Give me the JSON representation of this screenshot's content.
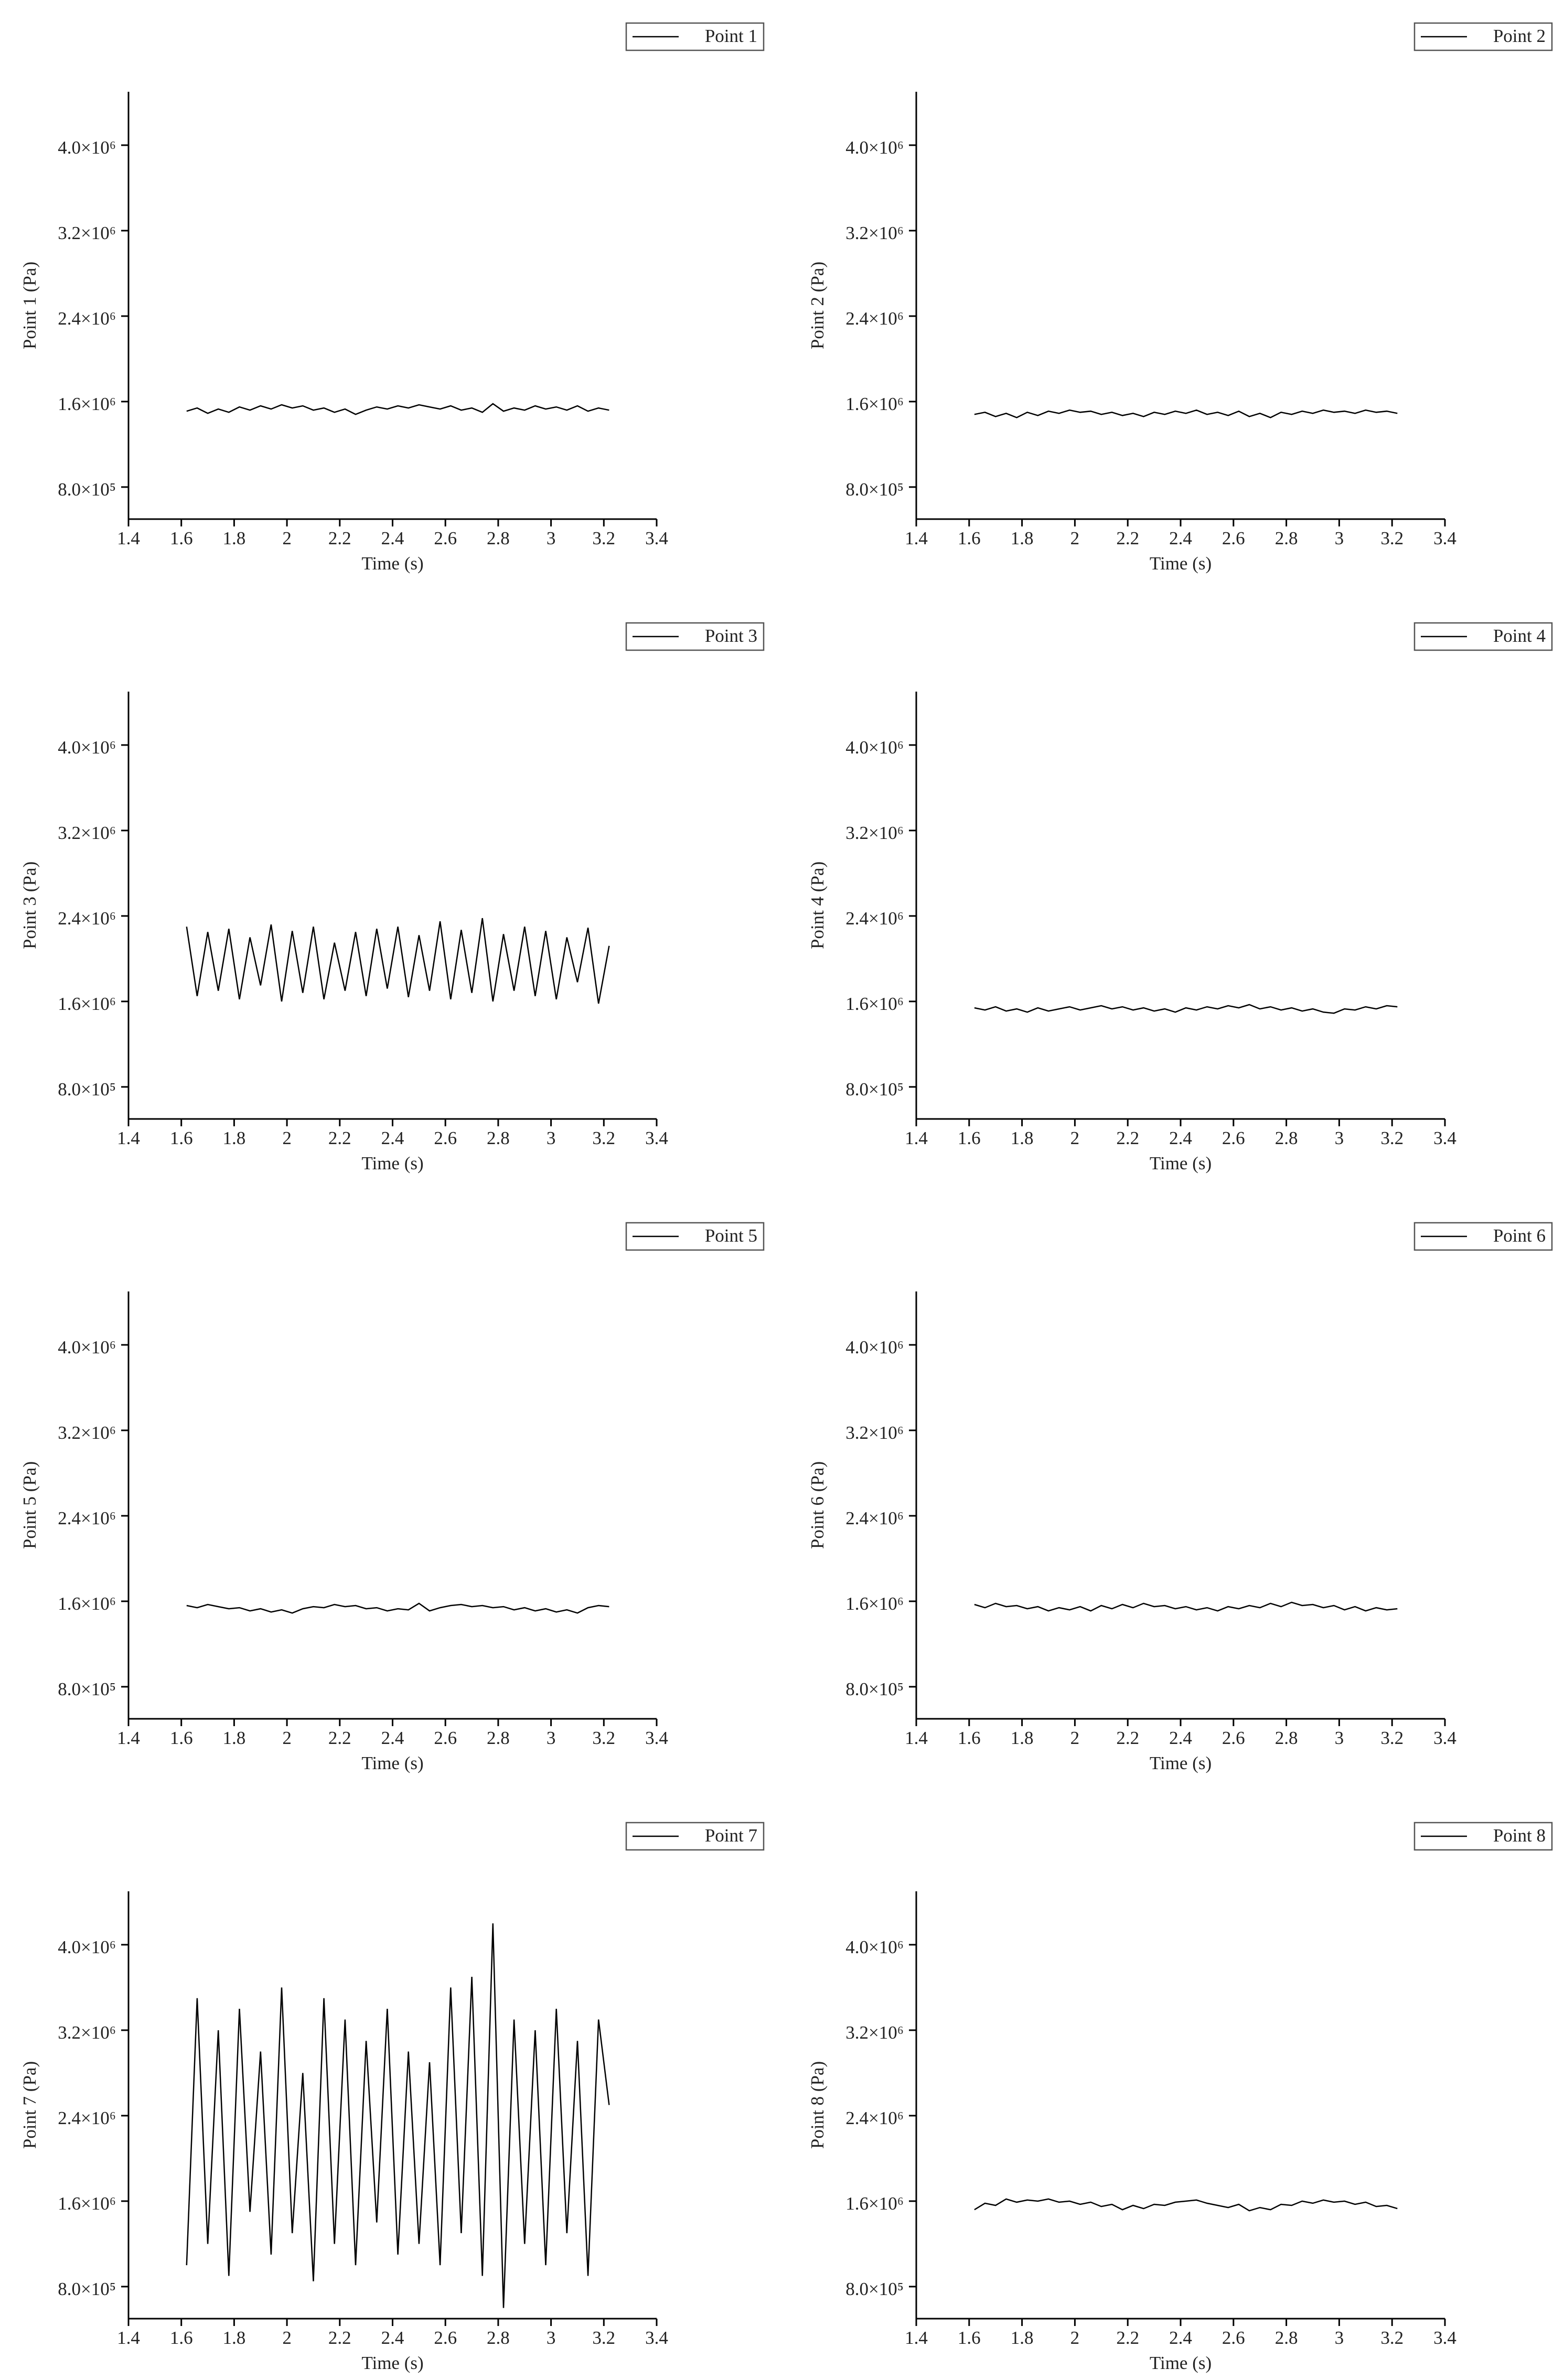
{
  "chart_data": [
    {
      "type": "line",
      "y_label": "Point 1 (Pa)",
      "x_label": "Time (s)",
      "x": [
        1.62,
        1.66,
        1.7,
        1.74,
        1.78,
        1.82,
        1.86,
        1.9,
        1.94,
        1.98,
        2.02,
        2.06,
        2.1,
        2.14,
        2.18,
        2.22,
        2.26,
        2.3,
        2.34,
        2.38,
        2.42,
        2.46,
        2.5,
        2.54,
        2.58,
        2.62,
        2.66,
        2.7,
        2.74,
        2.78,
        2.82,
        2.86,
        2.9,
        2.94,
        2.98,
        3.02,
        3.06,
        3.1,
        3.14,
        3.18,
        3.22
      ],
      "series": [
        {
          "name": "Point 1",
          "color": "#000000",
          "values": [
            1510000,
            1540000,
            1490000,
            1530000,
            1500000,
            1550000,
            1520000,
            1560000,
            1530000,
            1570000,
            1540000,
            1560000,
            1520000,
            1540000,
            1500000,
            1530000,
            1480000,
            1520000,
            1550000,
            1530000,
            1560000,
            1540000,
            1570000,
            1550000,
            1530000,
            1560000,
            1520000,
            1540000,
            1500000,
            1580000,
            1510000,
            1540000,
            1520000,
            1560000,
            1530000,
            1550000,
            1520000,
            1560000,
            1510000,
            1540000,
            1520000
          ]
        }
      ],
      "xlim": [
        1.4,
        3.4
      ],
      "xticks": [
        1.4,
        1.6,
        1.8,
        2.0,
        2.2,
        2.4,
        2.6,
        2.8,
        3.0,
        3.2,
        3.4
      ],
      "ylim": [
        500000,
        4500000
      ],
      "yticks": [
        {
          "value": 800000,
          "label": "8.0×10⁵"
        },
        {
          "value": 1600000,
          "label": "1.6×10⁶"
        },
        {
          "value": 2400000,
          "label": "2.4×10⁶"
        },
        {
          "value": 3200000,
          "label": "3.2×10⁶"
        },
        {
          "value": 4000000,
          "label": "4.0×10⁶"
        }
      ]
    },
    {
      "type": "line",
      "y_label": "Point 2 (Pa)",
      "x_label": "Time (s)",
      "x": [
        1.62,
        1.66,
        1.7,
        1.74,
        1.78,
        1.82,
        1.86,
        1.9,
        1.94,
        1.98,
        2.02,
        2.06,
        2.1,
        2.14,
        2.18,
        2.22,
        2.26,
        2.3,
        2.34,
        2.38,
        2.42,
        2.46,
        2.5,
        2.54,
        2.58,
        2.62,
        2.66,
        2.7,
        2.74,
        2.78,
        2.82,
        2.86,
        2.9,
        2.94,
        2.98,
        3.02,
        3.06,
        3.1,
        3.14,
        3.18,
        3.22
      ],
      "series": [
        {
          "name": "Point 2",
          "color": "#000000",
          "values": [
            1480000,
            1500000,
            1460000,
            1490000,
            1450000,
            1500000,
            1470000,
            1510000,
            1490000,
            1520000,
            1500000,
            1510000,
            1480000,
            1500000,
            1470000,
            1490000,
            1460000,
            1500000,
            1480000,
            1510000,
            1490000,
            1520000,
            1480000,
            1500000,
            1470000,
            1510000,
            1460000,
            1490000,
            1450000,
            1500000,
            1480000,
            1510000,
            1490000,
            1520000,
            1500000,
            1510000,
            1490000,
            1520000,
            1500000,
            1510000,
            1490000
          ]
        }
      ],
      "xlim": [
        1.4,
        3.4
      ],
      "xticks": [
        1.4,
        1.6,
        1.8,
        2.0,
        2.2,
        2.4,
        2.6,
        2.8,
        3.0,
        3.2,
        3.4
      ],
      "ylim": [
        500000,
        4500000
      ],
      "yticks": [
        {
          "value": 800000,
          "label": "8.0×10⁵"
        },
        {
          "value": 1600000,
          "label": "1.6×10⁶"
        },
        {
          "value": 2400000,
          "label": "2.4×10⁶"
        },
        {
          "value": 3200000,
          "label": "3.2×10⁶"
        },
        {
          "value": 4000000,
          "label": "4.0×10⁶"
        }
      ]
    },
    {
      "type": "line",
      "y_label": "Point 3 (Pa)",
      "x_label": "Time (s)",
      "x": [
        1.62,
        1.66,
        1.7,
        1.74,
        1.78,
        1.82,
        1.86,
        1.9,
        1.94,
        1.98,
        2.02,
        2.06,
        2.1,
        2.14,
        2.18,
        2.22,
        2.26,
        2.3,
        2.34,
        2.38,
        2.42,
        2.46,
        2.5,
        2.54,
        2.58,
        2.62,
        2.66,
        2.7,
        2.74,
        2.78,
        2.82,
        2.86,
        2.9,
        2.94,
        2.98,
        3.02,
        3.06,
        3.1,
        3.14,
        3.18,
        3.22
      ],
      "series": [
        {
          "name": "Point 3",
          "color": "#000000",
          "values": [
            2300000,
            1650000,
            2250000,
            1700000,
            2280000,
            1620000,
            2200000,
            1750000,
            2320000,
            1600000,
            2260000,
            1680000,
            2300000,
            1620000,
            2150000,
            1700000,
            2250000,
            1650000,
            2280000,
            1720000,
            2300000,
            1640000,
            2220000,
            1700000,
            2350000,
            1620000,
            2270000,
            1680000,
            2380000,
            1600000,
            2230000,
            1700000,
            2300000,
            1650000,
            2260000,
            1620000,
            2200000,
            1780000,
            2290000,
            1580000,
            2120000
          ]
        }
      ],
      "xlim": [
        1.4,
        3.4
      ],
      "xticks": [
        1.4,
        1.6,
        1.8,
        2.0,
        2.2,
        2.4,
        2.6,
        2.8,
        3.0,
        3.2,
        3.4
      ],
      "ylim": [
        500000,
        4500000
      ],
      "yticks": [
        {
          "value": 800000,
          "label": "8.0×10⁵"
        },
        {
          "value": 1600000,
          "label": "1.6×10⁶"
        },
        {
          "value": 2400000,
          "label": "2.4×10⁶"
        },
        {
          "value": 3200000,
          "label": "3.2×10⁶"
        },
        {
          "value": 4000000,
          "label": "4.0×10⁶"
        }
      ]
    },
    {
      "type": "line",
      "y_label": "Point 4 (Pa)",
      "x_label": "Time (s)",
      "x": [
        1.62,
        1.66,
        1.7,
        1.74,
        1.78,
        1.82,
        1.86,
        1.9,
        1.94,
        1.98,
        2.02,
        2.06,
        2.1,
        2.14,
        2.18,
        2.22,
        2.26,
        2.3,
        2.34,
        2.38,
        2.42,
        2.46,
        2.5,
        2.54,
        2.58,
        2.62,
        2.66,
        2.7,
        2.74,
        2.78,
        2.82,
        2.86,
        2.9,
        2.94,
        2.98,
        3.02,
        3.06,
        3.1,
        3.14,
        3.18,
        3.22
      ],
      "series": [
        {
          "name": "Point 4",
          "color": "#000000",
          "values": [
            1540000,
            1520000,
            1550000,
            1510000,
            1530000,
            1500000,
            1540000,
            1510000,
            1530000,
            1550000,
            1520000,
            1540000,
            1560000,
            1530000,
            1550000,
            1520000,
            1540000,
            1510000,
            1530000,
            1500000,
            1540000,
            1520000,
            1550000,
            1530000,
            1560000,
            1540000,
            1570000,
            1530000,
            1550000,
            1520000,
            1540000,
            1510000,
            1530000,
            1500000,
            1490000,
            1530000,
            1520000,
            1550000,
            1530000,
            1560000,
            1550000
          ]
        }
      ],
      "xlim": [
        1.4,
        3.4
      ],
      "xticks": [
        1.4,
        1.6,
        1.8,
        2.0,
        2.2,
        2.4,
        2.6,
        2.8,
        3.0,
        3.2,
        3.4
      ],
      "ylim": [
        500000,
        4500000
      ],
      "yticks": [
        {
          "value": 800000,
          "label": "8.0×10⁵"
        },
        {
          "value": 1600000,
          "label": "1.6×10⁶"
        },
        {
          "value": 2400000,
          "label": "2.4×10⁶"
        },
        {
          "value": 3200000,
          "label": "3.2×10⁶"
        },
        {
          "value": 4000000,
          "label": "4.0×10⁶"
        }
      ]
    },
    {
      "type": "line",
      "y_label": "Point 5 (Pa)",
      "x_label": "Time (s)",
      "x": [
        1.62,
        1.66,
        1.7,
        1.74,
        1.78,
        1.82,
        1.86,
        1.9,
        1.94,
        1.98,
        2.02,
        2.06,
        2.1,
        2.14,
        2.18,
        2.22,
        2.26,
        2.3,
        2.34,
        2.38,
        2.42,
        2.46,
        2.5,
        2.54,
        2.58,
        2.62,
        2.66,
        2.7,
        2.74,
        2.78,
        2.82,
        2.86,
        2.9,
        2.94,
        2.98,
        3.02,
        3.06,
        3.1,
        3.14,
        3.18,
        3.22
      ],
      "series": [
        {
          "name": "Point 5",
          "color": "#000000",
          "values": [
            1560000,
            1540000,
            1570000,
            1550000,
            1530000,
            1540000,
            1510000,
            1530000,
            1500000,
            1520000,
            1490000,
            1530000,
            1550000,
            1540000,
            1570000,
            1550000,
            1560000,
            1530000,
            1540000,
            1510000,
            1530000,
            1520000,
            1580000,
            1510000,
            1540000,
            1560000,
            1570000,
            1550000,
            1560000,
            1540000,
            1550000,
            1520000,
            1540000,
            1510000,
            1530000,
            1500000,
            1520000,
            1490000,
            1540000,
            1560000,
            1550000
          ]
        }
      ],
      "xlim": [
        1.4,
        3.4
      ],
      "xticks": [
        1.4,
        1.6,
        1.8,
        2.0,
        2.2,
        2.4,
        2.6,
        2.8,
        3.0,
        3.2,
        3.4
      ],
      "ylim": [
        500000,
        4500000
      ],
      "yticks": [
        {
          "value": 800000,
          "label": "8.0×10⁵"
        },
        {
          "value": 1600000,
          "label": "1.6×10⁶"
        },
        {
          "value": 2400000,
          "label": "2.4×10⁶"
        },
        {
          "value": 3200000,
          "label": "3.2×10⁶"
        },
        {
          "value": 4000000,
          "label": "4.0×10⁶"
        }
      ]
    },
    {
      "type": "line",
      "y_label": "Point 6 (Pa)",
      "x_label": "Time (s)",
      "x": [
        1.62,
        1.66,
        1.7,
        1.74,
        1.78,
        1.82,
        1.86,
        1.9,
        1.94,
        1.98,
        2.02,
        2.06,
        2.1,
        2.14,
        2.18,
        2.22,
        2.26,
        2.3,
        2.34,
        2.38,
        2.42,
        2.46,
        2.5,
        2.54,
        2.58,
        2.62,
        2.66,
        2.7,
        2.74,
        2.78,
        2.82,
        2.86,
        2.9,
        2.94,
        2.98,
        3.02,
        3.06,
        3.1,
        3.14,
        3.18,
        3.22
      ],
      "series": [
        {
          "name": "Point 6",
          "color": "#000000",
          "values": [
            1570000,
            1540000,
            1580000,
            1550000,
            1560000,
            1530000,
            1550000,
            1510000,
            1540000,
            1520000,
            1550000,
            1510000,
            1560000,
            1530000,
            1570000,
            1540000,
            1580000,
            1550000,
            1560000,
            1530000,
            1550000,
            1520000,
            1540000,
            1510000,
            1550000,
            1530000,
            1560000,
            1540000,
            1580000,
            1550000,
            1590000,
            1560000,
            1570000,
            1540000,
            1560000,
            1520000,
            1550000,
            1510000,
            1540000,
            1520000,
            1530000
          ]
        }
      ],
      "xlim": [
        1.4,
        3.4
      ],
      "xticks": [
        1.4,
        1.6,
        1.8,
        2.0,
        2.2,
        2.4,
        2.6,
        2.8,
        3.0,
        3.2,
        3.4
      ],
      "ylim": [
        500000,
        4500000
      ],
      "yticks": [
        {
          "value": 800000,
          "label": "8.0×10⁵"
        },
        {
          "value": 1600000,
          "label": "1.6×10⁶"
        },
        {
          "value": 2400000,
          "label": "2.4×10⁶"
        },
        {
          "value": 3200000,
          "label": "3.2×10⁶"
        },
        {
          "value": 4000000,
          "label": "4.0×10⁶"
        }
      ]
    },
    {
      "type": "line",
      "y_label": "Point 7 (Pa)",
      "x_label": "Time (s)",
      "x": [
        1.62,
        1.66,
        1.7,
        1.74,
        1.78,
        1.82,
        1.86,
        1.9,
        1.94,
        1.98,
        2.02,
        2.06,
        2.1,
        2.14,
        2.18,
        2.22,
        2.26,
        2.3,
        2.34,
        2.38,
        2.42,
        2.46,
        2.5,
        2.54,
        2.58,
        2.62,
        2.66,
        2.7,
        2.74,
        2.78,
        2.82,
        2.86,
        2.9,
        2.94,
        2.98,
        3.02,
        3.06,
        3.1,
        3.14,
        3.18,
        3.22
      ],
      "series": [
        {
          "name": "Point 7",
          "color": "#000000",
          "values": [
            1000000,
            3500000,
            1200000,
            3200000,
            900000,
            3400000,
            1500000,
            3000000,
            1100000,
            3600000,
            1300000,
            2800000,
            850000,
            3500000,
            1200000,
            3300000,
            1000000,
            3100000,
            1400000,
            3400000,
            1100000,
            3000000,
            1200000,
            2900000,
            1000000,
            3600000,
            1300000,
            3700000,
            900000,
            4200000,
            600000,
            3300000,
            1200000,
            3200000,
            1000000,
            3400000,
            1300000,
            3100000,
            900000,
            3300000,
            2500000
          ]
        }
      ],
      "xlim": [
        1.4,
        3.4
      ],
      "xticks": [
        1.4,
        1.6,
        1.8,
        2.0,
        2.2,
        2.4,
        2.6,
        2.8,
        3.0,
        3.2,
        3.4
      ],
      "ylim": [
        500000,
        4500000
      ],
      "yticks": [
        {
          "value": 800000,
          "label": "8.0×10⁵"
        },
        {
          "value": 1600000,
          "label": "1.6×10⁶"
        },
        {
          "value": 2400000,
          "label": "2.4×10⁶"
        },
        {
          "value": 3200000,
          "label": "3.2×10⁶"
        },
        {
          "value": 4000000,
          "label": "4.0×10⁶"
        }
      ]
    },
    {
      "type": "line",
      "y_label": "Point 8 (Pa)",
      "x_label": "Time (s)",
      "x": [
        1.62,
        1.66,
        1.7,
        1.74,
        1.78,
        1.82,
        1.86,
        1.9,
        1.94,
        1.98,
        2.02,
        2.06,
        2.1,
        2.14,
        2.18,
        2.22,
        2.26,
        2.3,
        2.34,
        2.38,
        2.42,
        2.46,
        2.5,
        2.54,
        2.58,
        2.62,
        2.66,
        2.7,
        2.74,
        2.78,
        2.82,
        2.86,
        2.9,
        2.94,
        2.98,
        3.02,
        3.06,
        3.1,
        3.14,
        3.18,
        3.22
      ],
      "series": [
        {
          "name": "Point 8",
          "color": "#000000",
          "values": [
            1520000,
            1580000,
            1560000,
            1620000,
            1590000,
            1610000,
            1600000,
            1620000,
            1590000,
            1600000,
            1570000,
            1590000,
            1550000,
            1570000,
            1520000,
            1560000,
            1530000,
            1570000,
            1560000,
            1590000,
            1600000,
            1610000,
            1580000,
            1560000,
            1540000,
            1570000,
            1510000,
            1540000,
            1520000,
            1570000,
            1560000,
            1600000,
            1580000,
            1610000,
            1590000,
            1600000,
            1570000,
            1590000,
            1550000,
            1560000,
            1530000
          ]
        }
      ],
      "xlim": [
        1.4,
        3.4
      ],
      "xticks": [
        1.4,
        1.6,
        1.8,
        2.0,
        2.2,
        2.4,
        2.6,
        2.8,
        3.0,
        3.2,
        3.4
      ],
      "ylim": [
        500000,
        4500000
      ],
      "yticks": [
        {
          "value": 800000,
          "label": "8.0×10⁵"
        },
        {
          "value": 1600000,
          "label": "1.6×10⁶"
        },
        {
          "value": 2400000,
          "label": "2.4×10⁶"
        },
        {
          "value": 3200000,
          "label": "3.2×10⁶"
        },
        {
          "value": 4000000,
          "label": "4.0×10⁶"
        }
      ]
    }
  ]
}
